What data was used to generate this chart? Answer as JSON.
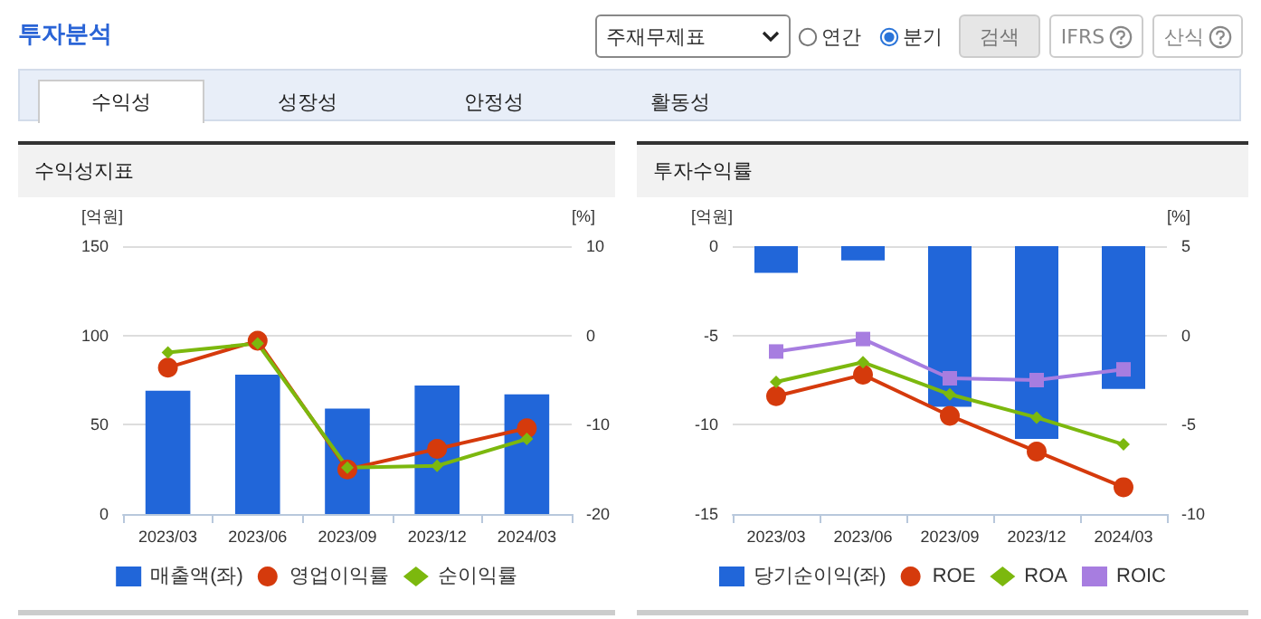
{
  "chart_data": [
    {
      "type": "other",
      "title": "투자분석",
      "annotations": [
        "주재무제표",
        "연간",
        "분기",
        "검색",
        "IFRS",
        "산식",
        "수익성",
        "성장성",
        "안정성",
        "활동성"
      ]
    },
    {
      "type": "bar",
      "title": "수익성지표",
      "ylabel": "[억원]",
      "y2label": "[%]",
      "categories": [
        "2023/03",
        "2023/06",
        "2023/09",
        "2023/12",
        "2024/03"
      ],
      "ylim": [
        0,
        150
      ],
      "yticks": [
        0,
        50,
        100,
        150
      ],
      "y2lim": [
        -20,
        10
      ],
      "y2ticks": [
        -20,
        -10,
        0,
        10
      ],
      "grid": "y",
      "legend": "bottom",
      "series": [
        {
          "name": "매출액(좌)",
          "type": "bar",
          "color": "#2166d9",
          "values": [
            69,
            78,
            59,
            72,
            67
          ]
        },
        {
          "name": "영업이익률",
          "type": "line",
          "axis": "y2",
          "marker": "circle",
          "color": "#d53a0c",
          "values": [
            -3.6,
            -0.6,
            -15,
            -12.7,
            -10.4
          ]
        },
        {
          "name": "순이익률",
          "type": "line",
          "axis": "y2",
          "marker": "diamond",
          "color": "#7cb80e",
          "values": [
            -1.9,
            -0.9,
            -14.8,
            -14.6,
            -11.6
          ]
        }
      ]
    },
    {
      "type": "bar",
      "title": "투자수익률",
      "ylabel": "[억원]",
      "y2label": "[%]",
      "categories": [
        "2023/03",
        "2023/06",
        "2023/09",
        "2023/12",
        "2024/03"
      ],
      "ylim": [
        -15,
        0
      ],
      "yticks": [
        -15,
        -10,
        -5,
        0
      ],
      "y2lim": [
        -10,
        5
      ],
      "y2ticks": [
        -10,
        -5,
        0,
        5
      ],
      "grid": "y",
      "legend": "bottom",
      "series": [
        {
          "name": "당기순이익(좌)",
          "type": "bar",
          "color": "#2166d9",
          "values": [
            -1.5,
            -0.8,
            -9.0,
            -10.8,
            -8.0
          ]
        },
        {
          "name": "ROE",
          "type": "line",
          "axis": "y2",
          "marker": "circle",
          "color": "#d53a0c",
          "values": [
            -3.4,
            -2.2,
            -4.5,
            -6.5,
            -8.5
          ]
        },
        {
          "name": "ROA",
          "type": "line",
          "axis": "y2",
          "marker": "diamond",
          "color": "#7cb80e",
          "values": [
            -2.6,
            -1.5,
            -3.3,
            -4.6,
            -6.1
          ]
        },
        {
          "name": "ROIC",
          "type": "line",
          "axis": "y2",
          "marker": "square",
          "color": "#a77de0",
          "values": [
            -0.9,
            -0.2,
            -2.4,
            -2.5,
            -1.9
          ]
        }
      ]
    }
  ]
}
